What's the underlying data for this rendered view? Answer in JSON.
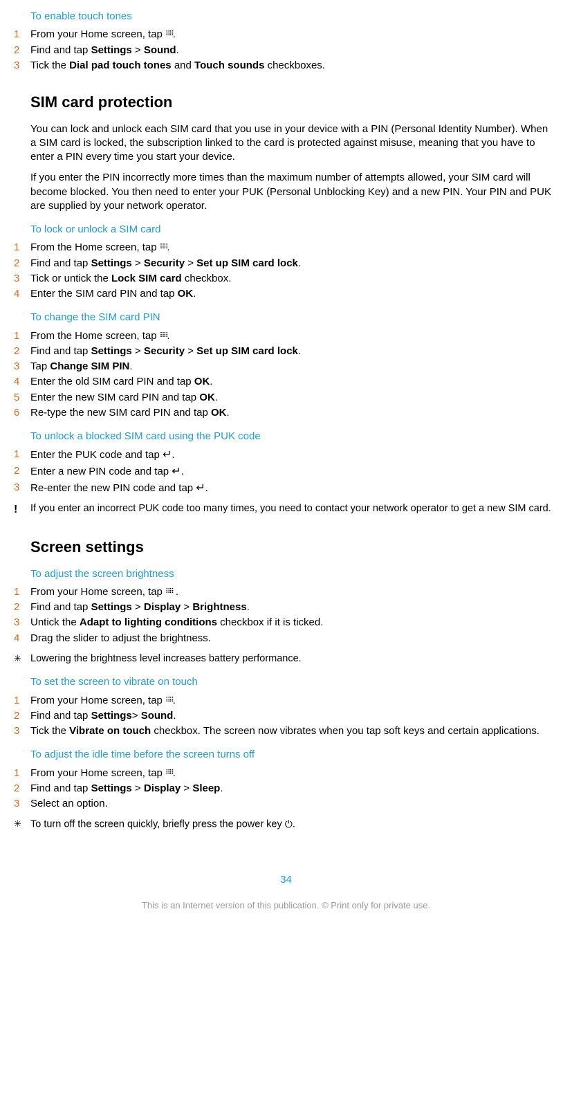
{
  "colors": {
    "accent": "#1e9dd8",
    "step_num": "#da6a1a",
    "footer": "#9a9a9a",
    "text": "#000000",
    "bg": "#ffffff"
  },
  "typography": {
    "body_size_pt": 11,
    "heading_size_pt": 16,
    "font_family": "Arial"
  },
  "icons": {
    "apps": ":::",
    "enter": "↵",
    "power": "⏻",
    "bulb": "💡",
    "important": "❗"
  },
  "s1": {
    "title": "To enable touch tones",
    "steps": {
      "n1": "1",
      "t1a": "From your Home screen, tap ",
      "t1b": ".",
      "n2": "2",
      "t2a": "Find and tap ",
      "t2b": "Settings",
      "t2c": " > ",
      "t2d": "Sound",
      "t2e": ".",
      "n3": "3",
      "t3a": "Tick the ",
      "t3b": "Dial pad touch tones",
      "t3c": " and ",
      "t3d": "Touch sounds",
      "t3e": " checkboxes."
    }
  },
  "h1": "SIM card protection",
  "p1": "You can lock and unlock each SIM card that you use in your device with a PIN (Personal Identity Number). When a SIM card is locked, the subscription linked to the card is protected against misuse, meaning that you have to enter a PIN every time you start your device.",
  "p2": "If you enter the PIN incorrectly more times than the maximum number of attempts allowed, your SIM card will become blocked. You then need to enter your PUK (Personal Unblocking Key) and a new PIN. Your PIN and PUK are supplied by your network operator.",
  "s2": {
    "title": "To lock or unlock a SIM card",
    "n1": "1",
    "t1a": "From the Home screen, tap ",
    "t1b": ".",
    "n2": "2",
    "t2a": "Find and tap ",
    "t2b": "Settings",
    "t2c": " > ",
    "t2d": "Security",
    "t2e": " > ",
    "t2f": "Set up SIM card lock",
    "t2g": ".",
    "n3": "3",
    "t3a": "Tick or untick the ",
    "t3b": "Lock SIM card",
    "t3c": " checkbox.",
    "n4": "4",
    "t4a": "Enter the SIM card PIN and tap ",
    "t4b": "OK",
    "t4c": "."
  },
  "s3": {
    "title": "To change the SIM card PIN",
    "n1": "1",
    "t1a": "From the Home screen, tap ",
    "t1b": ".",
    "n2": "2",
    "t2a": "Find and tap ",
    "t2b": "Settings",
    "t2c": " > ",
    "t2d": "Security",
    "t2e": " > ",
    "t2f": "Set up SIM card lock",
    "t2g": ".",
    "n3": "3",
    "t3a": "Tap ",
    "t3b": "Change SIM PIN",
    "t3c": ".",
    "n4": "4",
    "t4a": "Enter the old SIM card PIN and tap ",
    "t4b": "OK",
    "t4c": ".",
    "n5": "5",
    "t5a": "Enter the new SIM card PIN and tap ",
    "t5b": "OK",
    "t5c": ".",
    "n6": "6",
    "t6a": "Re-type the new SIM card PIN and tap ",
    "t6b": "OK",
    "t6c": "."
  },
  "s4": {
    "title": "To unlock a blocked SIM card using the PUK code",
    "n1": "1",
    "t1a": "Enter the PUK code and tap ",
    "t1b": ".",
    "n2": "2",
    "t2a": "Enter a new PIN code and tap ",
    "t2b": ".",
    "n3": "3",
    "t3a": "Re-enter the new PIN code and tap ",
    "t3b": "."
  },
  "note1": "If you enter an incorrect PUK code too many times, you need to contact your network operator to get a new SIM card.",
  "h2": "Screen settings",
  "s5": {
    "title": "To adjust the screen brightness",
    "n1": "1",
    "t1a": "From your Home screen, tap ",
    "t1b": " .",
    "n2": "2",
    "t2a": "Find and tap ",
    "t2b": "Settings",
    "t2c": " > ",
    "t2d": "Display",
    "t2e": " > ",
    "t2f": "Brightness",
    "t2g": ".",
    "n3": "3",
    "t3a": "Untick the ",
    "t3b": "Adapt to lighting conditions",
    "t3c": " checkbox if it is ticked.",
    "n4": "4",
    "t4": "Drag the slider to adjust the brightness."
  },
  "tip1": "Lowering the brightness level increases battery performance.",
  "s6": {
    "title": "To set the screen to vibrate on touch",
    "n1": "1",
    "t1a": "From your Home screen, tap ",
    "t1b": ".",
    "n2": "2",
    "t2a": "Find and tap ",
    "t2b": "Settings",
    "t2c": "> ",
    "t2d": "Sound",
    "t2e": ".",
    "n3": "3",
    "t3a": "Tick the ",
    "t3b": "Vibrate on touch",
    "t3c": " checkbox. The screen now vibrates when you tap soft keys and certain applications."
  },
  "s7": {
    "title": "To adjust the idle time before the screen turns off",
    "n1": "1",
    "t1a": "From your Home screen, tap ",
    "t1b": ".",
    "n2": "2",
    "t2a": "Find and tap ",
    "t2b": "Settings",
    "t2c": " > ",
    "t2d": "Display",
    "t2e": " > ",
    "t2f": "Sleep",
    "t2g": ".",
    "n3": "3",
    "t3": "Select an option."
  },
  "tip2a": "To turn off the screen quickly, briefly press the power key ",
  "tip2b": ".",
  "page": "34",
  "footer": "This is an Internet version of this publication. © Print only for private use."
}
